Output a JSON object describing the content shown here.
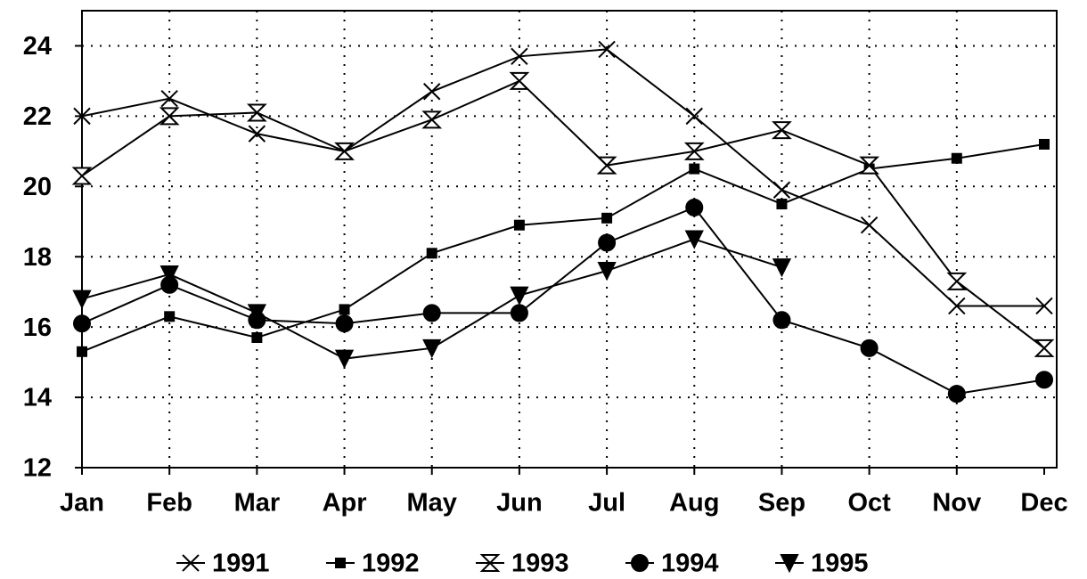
{
  "chart_data": {
    "type": "line",
    "categories": [
      "Jan",
      "Feb",
      "Mar",
      "Apr",
      "May",
      "Jun",
      "Jul",
      "Aug",
      "Sep",
      "Oct",
      "Nov",
      "Dec"
    ],
    "series": [
      {
        "name": "1991",
        "color": "#000000",
        "marker": "x",
        "values": [
          22,
          22.5,
          21.5,
          21,
          22.7,
          23.7,
          23.9,
          22,
          19.9,
          18.9,
          16.6,
          16.6
        ]
      },
      {
        "name": "1992",
        "color": "#000000",
        "marker": "square",
        "values": [
          15.3,
          16.3,
          15.7,
          16.5,
          18.1,
          18.9,
          19.1,
          20.5,
          19.5,
          20.5,
          20.8,
          21.2
        ]
      },
      {
        "name": "1993",
        "color": "#000000",
        "marker": "hourglass",
        "values": [
          20.3,
          22,
          22.1,
          21,
          21.9,
          23,
          20.6,
          21,
          21.6,
          20.6,
          17.3,
          15.4
        ]
      },
      {
        "name": "1994",
        "color": "#000000",
        "marker": "circle",
        "values": [
          16.1,
          17.2,
          16.2,
          16.1,
          16.4,
          16.4,
          18.4,
          19.4,
          16.2,
          15.4,
          14.1,
          14.5
        ]
      },
      {
        "name": "1995",
        "color": "#000000",
        "marker": "triangle-down",
        "values": [
          16.8,
          17.5,
          16.4,
          15.1,
          15.4,
          16.9,
          17.6,
          18.5,
          17.7,
          null,
          null,
          null
        ]
      }
    ],
    "ylim": [
      12,
      25
    ],
    "yticks": [
      12,
      14,
      16,
      18,
      20,
      22,
      24
    ],
    "grid": true,
    "legend": "bottom"
  }
}
